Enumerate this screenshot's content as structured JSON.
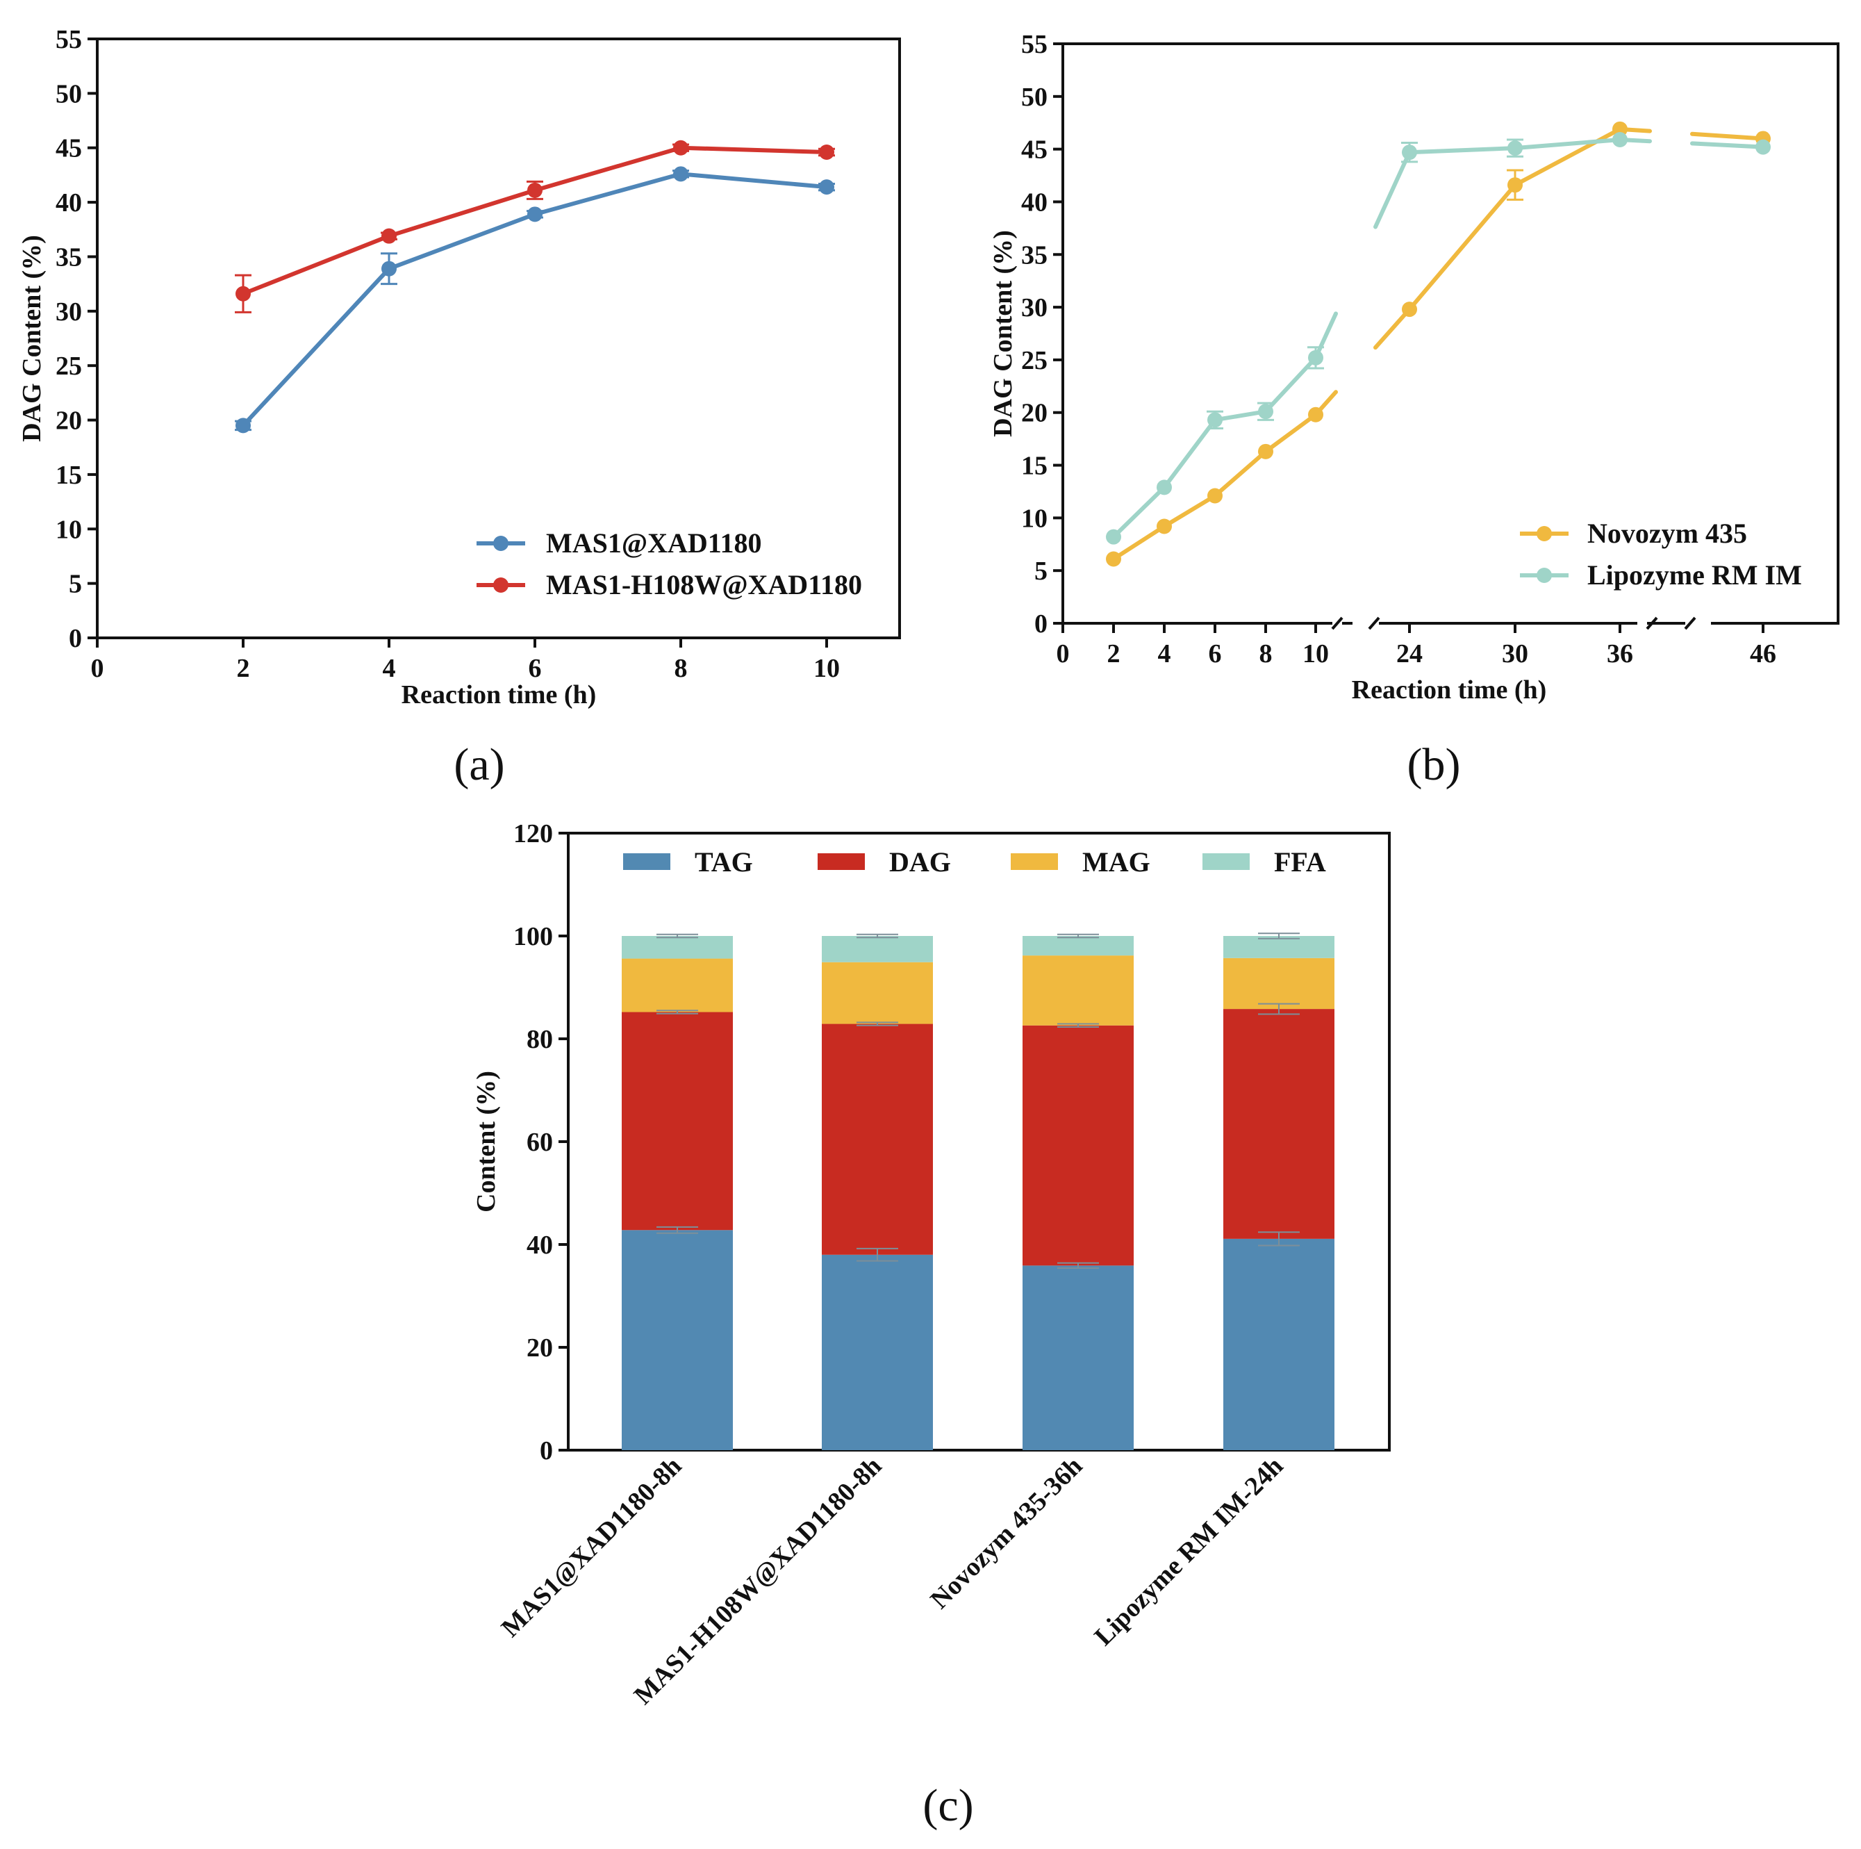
{
  "chart_data": [
    {
      "id": "a",
      "type": "line",
      "panel_label": "(a)",
      "xlabel": "Reaction time (h)",
      "ylabel": "DAG Content (%)",
      "xlim": [
        0,
        11
      ],
      "ylim": [
        0,
        55
      ],
      "xticks": [
        0,
        2,
        4,
        6,
        8,
        10
      ],
      "yticks": [
        0,
        5,
        10,
        15,
        20,
        25,
        30,
        35,
        40,
        45,
        50,
        55
      ],
      "legend_position": "bottom-right",
      "series": [
        {
          "name": "MAS1@XAD1180",
          "color": "#4f86b8",
          "x": [
            2,
            4,
            6,
            8,
            10
          ],
          "y": [
            19.5,
            33.9,
            38.9,
            42.6,
            41.4
          ],
          "err": [
            0.4,
            1.4,
            0.3,
            0.3,
            0.3
          ]
        },
        {
          "name": "MAS1-H108W@XAD1180",
          "color": "#d2352e",
          "x": [
            2,
            4,
            6,
            8,
            10
          ],
          "y": [
            31.6,
            36.9,
            41.1,
            45.0,
            44.6
          ],
          "err": [
            1.7,
            0.3,
            0.8,
            0.3,
            0.3
          ]
        }
      ]
    },
    {
      "id": "b",
      "type": "line",
      "panel_label": "(b)",
      "xlabel": "Reaction time (h)",
      "ylabel": "DAG Content (%)",
      "ylim": [
        0,
        55
      ],
      "yticks": [
        0,
        5,
        10,
        15,
        20,
        25,
        30,
        35,
        40,
        45,
        50,
        55
      ],
      "x_tick_labels": [
        "0",
        "2",
        "4",
        "6",
        "8",
        "10",
        "24",
        "30",
        "36",
        "46"
      ],
      "axis_breaks": [
        "10-24",
        "36-46"
      ],
      "legend_position": "bottom-right",
      "series": [
        {
          "name": "Novozym 435",
          "color": "#f0b93f",
          "x": [
            2,
            4,
            6,
            8,
            10,
            24,
            30,
            36,
            46
          ],
          "y": [
            6.1,
            9.2,
            12.1,
            16.3,
            19.8,
            29.8,
            41.6,
            46.9,
            46.0
          ],
          "err": [
            0.3,
            0.3,
            0.3,
            0.3,
            0.3,
            0.3,
            1.4,
            0.3,
            0.3
          ]
        },
        {
          "name": "Lipozyme RM IM",
          "color": "#9fd4c8",
          "x": [
            2,
            4,
            6,
            8,
            10,
            24,
            30,
            36,
            46
          ],
          "y": [
            8.2,
            12.9,
            19.3,
            20.1,
            25.2,
            44.7,
            45.1,
            45.9,
            45.2
          ],
          "err": [
            0.3,
            0.3,
            0.8,
            0.8,
            1.0,
            0.9,
            0.8,
            0.3,
            0.3
          ]
        }
      ]
    },
    {
      "id": "c",
      "type": "bar",
      "stacked": true,
      "panel_label": "(c)",
      "ylabel": "Content (%)",
      "ylim": [
        0,
        120
      ],
      "yticks": [
        0,
        20,
        40,
        60,
        80,
        100,
        120
      ],
      "categories": [
        "MAS1@XAD1180-8h",
        "MAS1-H108W@XAD1180-8h",
        "Novozym 435-36h",
        "Lipozyme RM IM-24h"
      ],
      "legend_position": "top",
      "series": [
        {
          "name": "TAG",
          "color": "#5289b2",
          "values": [
            42.8,
            38.0,
            35.9,
            41.1
          ],
          "err": [
            0.6,
            1.2,
            0.5,
            1.3
          ]
        },
        {
          "name": "DAG",
          "color": "#c82b21",
          "values": [
            42.4,
            44.9,
            46.7,
            44.7
          ],
          "err": [
            0.3,
            0.3,
            0.3,
            1.0
          ]
        },
        {
          "name": "MAG",
          "color": "#f0b93f",
          "values": [
            10.4,
            12.0,
            13.6,
            9.9
          ],
          "err": [
            0,
            0,
            0,
            0
          ]
        },
        {
          "name": "FFA",
          "color": "#9fd4c8",
          "values": [
            4.4,
            5.1,
            3.8,
            4.3
          ],
          "err": [
            0.3,
            0.3,
            0.3,
            0.5
          ]
        }
      ]
    }
  ]
}
